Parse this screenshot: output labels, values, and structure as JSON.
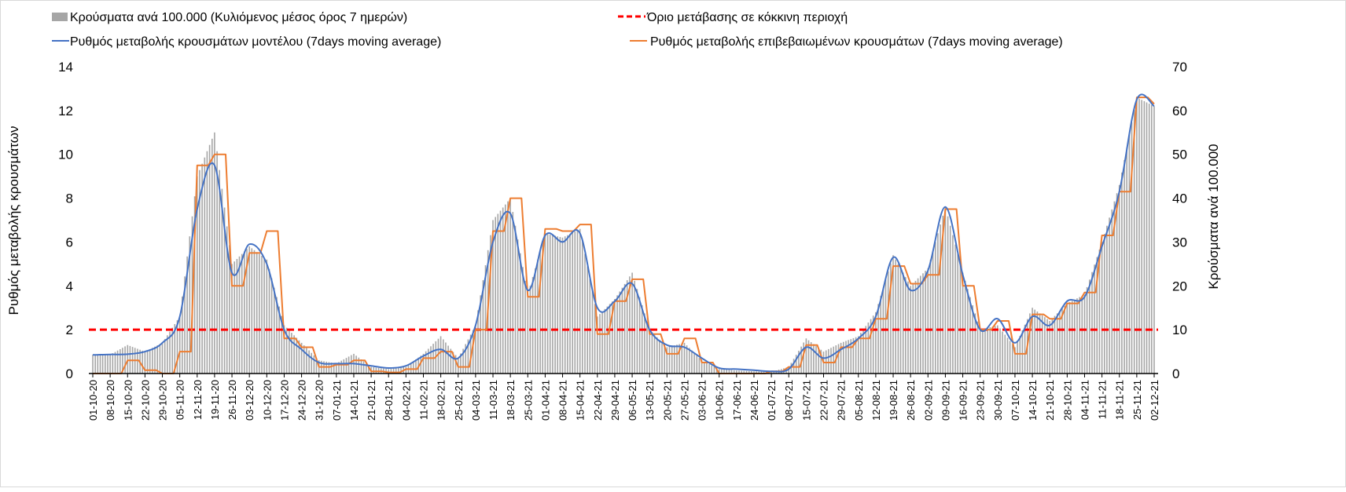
{
  "chart_data": {
    "type": "bar+line",
    "legend": {
      "bars": "Κρούσματα ανά 100.000 (Κυλιόμενος μέσος όρος 7 ημερών)",
      "threshold": "Όριο μετάβασης σε κόκκινη περιοχή",
      "model": "Ρυθμός μεταβολής κρουσμάτων μοντέλου (7days moving average)",
      "observed": "Ρυθμός μεταβολής επιβεβαιωμένων κρουσμάτων (7days moving average)"
    },
    "legend_position": "top",
    "ylabel_left": "Ρυθμός μεταβολής κρουσμάτων",
    "ylabel_right": "Κρούσματα ανά 100.000",
    "ylim_left": [
      0,
      14
    ],
    "ylim_right": [
      0,
      70
    ],
    "yticks_left": [
      "0",
      "2",
      "4",
      "6",
      "8",
      "10",
      "12",
      "14"
    ],
    "yticks_right": [
      "0",
      "10",
      "20",
      "30",
      "40",
      "50",
      "60",
      "70"
    ],
    "threshold_value": 2,
    "categories": [
      "01-10-20",
      "08-10-20",
      "15-10-20",
      "22-10-20",
      "29-10-20",
      "05-11-20",
      "12-11-20",
      "19-11-20",
      "26-11-20",
      "03-12-20",
      "10-12-20",
      "17-12-20",
      "24-12-20",
      "31-12-20",
      "07-01-21",
      "14-01-21",
      "21-01-21",
      "28-01-21",
      "04-02-21",
      "11-02-21",
      "18-02-21",
      "25-02-21",
      "04-03-21",
      "11-03-21",
      "18-03-21",
      "25-03-21",
      "01-04-21",
      "08-04-21",
      "15-04-21",
      "22-04-21",
      "29-04-21",
      "06-05-21",
      "13-05-21",
      "20-05-21",
      "27-05-21",
      "03-06-21",
      "10-06-21",
      "17-06-21",
      "24-06-21",
      "01-07-21",
      "08-07-21",
      "15-07-21",
      "22-07-21",
      "29-07-21",
      "05-08-21",
      "12-08-21",
      "19-08-21",
      "26-08-21",
      "02-09-21",
      "09-09-21",
      "16-09-21",
      "23-09-21",
      "30-09-21",
      "07-10-21",
      "14-10-21",
      "21-10-21",
      "28-10-21",
      "04-11-21",
      "11-11-21",
      "18-11-21",
      "25-11-21",
      "02-12-21"
    ],
    "series": [
      {
        "name": "Κρούσματα ανά 100.000 (Κυλιόμενος μέσος όρος 7 ημερών)",
        "axis": "right",
        "type": "bar",
        "color": "#a6a6a6",
        "values": [
          4.3,
          4.3,
          6.5,
          5,
          7,
          13,
          45,
          55,
          25,
          29,
          26,
          11,
          7,
          3,
          2.3,
          4.5,
          1.5,
          1,
          1.5,
          4.5,
          8.5,
          3.5,
          11,
          35,
          40,
          18,
          32,
          31,
          33,
          13,
          17,
          23,
          10,
          6,
          7,
          3,
          1,
          0.7,
          0.5,
          0.4,
          1.5,
          8,
          5,
          7,
          8.5,
          14,
          27,
          20,
          24,
          38,
          23,
          10,
          11,
          6,
          15,
          12,
          16,
          18,
          30,
          43,
          63,
          61
        ]
      },
      {
        "name": "Ρυθμός μεταβολής κρουσμάτων μοντέλου (7days moving average)",
        "axis": "left",
        "type": "line",
        "color": "#4472c4",
        "values": [
          0.85,
          0.87,
          0.88,
          1.0,
          1.4,
          2.6,
          7.5,
          9.5,
          4.6,
          5.9,
          5.0,
          2.0,
          1.1,
          0.5,
          0.45,
          0.45,
          0.35,
          0.25,
          0.35,
          0.8,
          1.1,
          0.7,
          2.2,
          6.0,
          7.3,
          3.8,
          6.3,
          6.0,
          6.4,
          3.0,
          3.3,
          4.1,
          2.0,
          1.3,
          1.2,
          0.7,
          0.25,
          0.2,
          0.15,
          0.1,
          0.2,
          1.2,
          0.7,
          1.1,
          1.6,
          2.6,
          5.3,
          3.8,
          4.7,
          7.6,
          4.5,
          2.0,
          2.5,
          1.4,
          2.6,
          2.2,
          3.3,
          3.5,
          5.8,
          8.3,
          12.5,
          12.2
        ]
      },
      {
        "name": "Ρυθμός μεταβολής επιβεβαιωμένων κρουσμάτων (7days moving average)",
        "axis": "left",
        "type": "line",
        "color": "#ed7d31",
        "values": [
          0,
          0,
          0.6,
          0.15,
          0,
          1.0,
          9.5,
          10.0,
          4.0,
          5.5,
          6.5,
          1.6,
          1.2,
          0.3,
          0.4,
          0.6,
          0.1,
          0.05,
          0.2,
          0.7,
          1.0,
          0.3,
          2.0,
          6.5,
          8.0,
          3.5,
          6.6,
          6.5,
          6.8,
          1.8,
          3.3,
          4.3,
          1.8,
          0.9,
          1.6,
          0.5,
          0,
          0,
          0,
          0.1,
          0.3,
          1.3,
          0.5,
          1.2,
          1.6,
          2.5,
          4.9,
          4.1,
          4.5,
          7.5,
          4.0,
          2.0,
          2.4,
          0.9,
          2.7,
          2.5,
          3.2,
          3.7,
          6.3,
          8.3,
          12.6,
          12.3
        ]
      },
      {
        "name": "Όριο μετάβασης σε κόκκινη περιοχή",
        "axis": "left",
        "type": "line",
        "style": "dashed",
        "color": "#ff0000"
      }
    ]
  }
}
